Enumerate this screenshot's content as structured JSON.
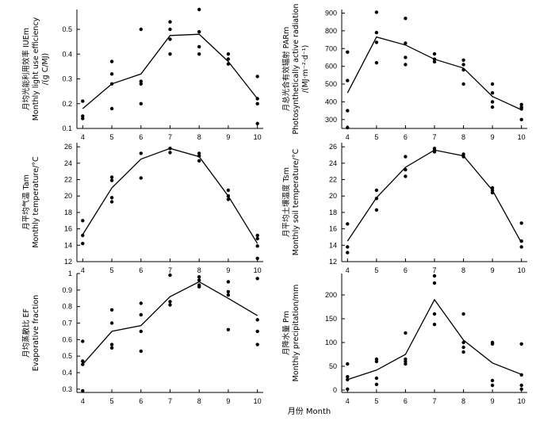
{
  "figure": {
    "x_title": "月份 Month"
  },
  "chart_data": [
    {
      "id": "iue",
      "type": "line",
      "ylabel": [
        "月均光能利用效率 IUEm",
        "Monthly light use efficiency",
        "/(g C/MJ)"
      ],
      "ylim": [
        0.1,
        0.58
      ],
      "yticks": [
        0.1,
        0.2,
        0.3,
        0.4,
        0.5
      ],
      "xlim": [
        3.8,
        10.2
      ],
      "xticks": [
        4,
        5,
        6,
        7,
        8,
        9,
        10
      ],
      "line": [
        [
          4,
          0.18
        ],
        [
          5,
          0.28
        ],
        [
          6,
          0.32
        ],
        [
          7,
          0.475
        ],
        [
          8,
          0.48
        ],
        [
          9,
          0.37
        ],
        [
          10,
          0.22
        ]
      ],
      "points": [
        [
          4,
          0.21
        ],
        [
          4,
          0.15
        ],
        [
          4,
          0.14
        ],
        [
          5,
          0.37
        ],
        [
          5,
          0.32
        ],
        [
          5,
          0.28
        ],
        [
          5,
          0.18
        ],
        [
          6,
          0.5
        ],
        [
          6,
          0.29
        ],
        [
          6,
          0.28
        ],
        [
          6,
          0.2
        ],
        [
          7,
          0.53
        ],
        [
          7,
          0.5
        ],
        [
          7,
          0.46
        ],
        [
          7,
          0.4
        ],
        [
          8,
          0.58
        ],
        [
          8,
          0.49
        ],
        [
          8,
          0.43
        ],
        [
          8,
          0.4
        ],
        [
          9,
          0.4
        ],
        [
          9,
          0.38
        ],
        [
          9,
          0.36
        ],
        [
          10,
          0.31
        ],
        [
          10,
          0.22
        ],
        [
          10,
          0.2
        ],
        [
          10,
          0.12
        ]
      ]
    },
    {
      "id": "par",
      "type": "line",
      "ylabel": [
        "月总光合有效辐射 PARm",
        "Photosynthetically active radiation",
        "/(MJ·m⁻²·d⁻¹)"
      ],
      "ylim": [
        250,
        920
      ],
      "yticks": [
        300,
        400,
        500,
        600,
        700,
        800,
        900
      ],
      "xlim": [
        3.8,
        10.2
      ],
      "xticks": [
        4,
        5,
        6,
        7,
        8,
        9,
        10
      ],
      "line": [
        [
          4,
          450
        ],
        [
          5,
          765
        ],
        [
          6,
          720
        ],
        [
          7,
          640
        ],
        [
          8,
          590
        ],
        [
          9,
          430
        ],
        [
          10,
          355
        ]
      ],
      "points": [
        [
          4,
          680
        ],
        [
          4,
          520
        ],
        [
          4,
          350
        ],
        [
          4,
          255
        ],
        [
          5,
          905
        ],
        [
          5,
          790
        ],
        [
          5,
          735
        ],
        [
          5,
          620
        ],
        [
          6,
          870
        ],
        [
          6,
          730
        ],
        [
          6,
          650
        ],
        [
          6,
          610
        ],
        [
          7,
          670
        ],
        [
          7,
          640
        ],
        [
          7,
          625
        ],
        [
          8,
          635
        ],
        [
          8,
          610
        ],
        [
          8,
          580
        ],
        [
          8,
          500
        ],
        [
          9,
          500
        ],
        [
          9,
          450
        ],
        [
          9,
          400
        ],
        [
          9,
          370
        ],
        [
          10,
          385
        ],
        [
          10,
          370
        ],
        [
          10,
          360
        ],
        [
          10,
          300
        ]
      ]
    },
    {
      "id": "tair",
      "type": "line",
      "ylabel": [
        "月平均气温 Tam",
        "Monthly temperature/°C"
      ],
      "ylim": [
        12,
        26.5
      ],
      "yticks": [
        12,
        14,
        16,
        18,
        20,
        22,
        24,
        26
      ],
      "xlim": [
        3.8,
        10.2
      ],
      "xticks": [
        4,
        5,
        6,
        7,
        8,
        9,
        10
      ],
      "line": [
        [
          4,
          15.3
        ],
        [
          5,
          21.0
        ],
        [
          6,
          24.5
        ],
        [
          7,
          25.8
        ],
        [
          8,
          24.8
        ],
        [
          9,
          20.0
        ],
        [
          10,
          14.2
        ]
      ],
      "points": [
        [
          4,
          17.0
        ],
        [
          4,
          15.2
        ],
        [
          4,
          14.2
        ],
        [
          5,
          22.3
        ],
        [
          5,
          21.9
        ],
        [
          5,
          19.8
        ],
        [
          5,
          19.3
        ],
        [
          6,
          25.2
        ],
        [
          6,
          22.2
        ],
        [
          7,
          25.8
        ],
        [
          7,
          25.3
        ],
        [
          8,
          25.2
        ],
        [
          8,
          24.9
        ],
        [
          8,
          24.3
        ],
        [
          9,
          20.7
        ],
        [
          9,
          20.0
        ],
        [
          9,
          19.6
        ],
        [
          10,
          15.2
        ],
        [
          10,
          14.8
        ],
        [
          10,
          13.9
        ],
        [
          10,
          12.4
        ]
      ]
    },
    {
      "id": "tsoil",
      "type": "line",
      "ylabel": [
        "月平均土壤温度 Tsm",
        "Monthly soil temperature/°C"
      ],
      "ylim": [
        12,
        26.5
      ],
      "yticks": [
        12,
        14,
        16,
        18,
        20,
        22,
        24,
        26
      ],
      "xlim": [
        3.8,
        10.2
      ],
      "xticks": [
        4,
        5,
        6,
        7,
        8,
        9,
        10
      ],
      "line": [
        [
          4,
          14.5
        ],
        [
          5,
          19.8
        ],
        [
          6,
          23.5
        ],
        [
          7,
          25.6
        ],
        [
          8,
          24.9
        ],
        [
          9,
          20.7
        ],
        [
          10,
          14.3
        ]
      ],
      "points": [
        [
          4,
          16.6
        ],
        [
          4,
          13.8
        ],
        [
          4,
          13.1
        ],
        [
          5,
          20.7
        ],
        [
          5,
          19.7
        ],
        [
          5,
          18.3
        ],
        [
          6,
          24.8
        ],
        [
          6,
          23.2
        ],
        [
          6,
          22.4
        ],
        [
          7,
          25.8
        ],
        [
          7,
          25.6
        ],
        [
          7,
          25.4
        ],
        [
          8,
          25.1
        ],
        [
          8,
          24.8
        ],
        [
          9,
          21.0
        ],
        [
          9,
          20.7
        ],
        [
          9,
          20.4
        ],
        [
          10,
          16.7
        ],
        [
          10,
          14.5
        ],
        [
          10,
          13.8
        ]
      ]
    },
    {
      "id": "ef",
      "type": "line",
      "ylabel": [
        "月均蒸散比 EF",
        "Evaporative fraction"
      ],
      "ylim": [
        0.28,
        1.0
      ],
      "yticks": [
        0.3,
        0.4,
        0.5,
        0.6,
        0.7,
        0.8,
        0.9,
        1.0
      ],
      "xlim": [
        3.8,
        10.2
      ],
      "xticks": [
        4,
        5,
        6,
        7,
        8,
        9,
        10
      ],
      "line": [
        [
          4,
          0.45
        ],
        [
          5,
          0.65
        ],
        [
          6,
          0.685
        ],
        [
          7,
          0.86
        ],
        [
          8,
          0.95
        ],
        [
          9,
          0.85
        ],
        [
          10,
          0.745
        ]
      ],
      "points": [
        [
          4,
          0.59
        ],
        [
          4,
          0.47
        ],
        [
          4,
          0.45
        ],
        [
          4,
          0.29
        ],
        [
          5,
          0.78
        ],
        [
          5,
          0.7
        ],
        [
          5,
          0.57
        ],
        [
          5,
          0.55
        ],
        [
          6,
          0.82
        ],
        [
          6,
          0.75
        ],
        [
          6,
          0.65
        ],
        [
          6,
          0.53
        ],
        [
          7,
          0.99
        ],
        [
          7,
          0.83
        ],
        [
          7,
          0.81
        ],
        [
          8,
          0.98
        ],
        [
          8,
          0.96
        ],
        [
          8,
          0.93
        ],
        [
          8,
          0.92
        ],
        [
          9,
          0.95
        ],
        [
          9,
          0.89
        ],
        [
          9,
          0.87
        ],
        [
          9,
          0.66
        ],
        [
          10,
          0.97
        ],
        [
          10,
          0.72
        ],
        [
          10,
          0.65
        ],
        [
          10,
          0.57
        ]
      ]
    },
    {
      "id": "precip",
      "type": "line",
      "ylabel": [
        "月降水量 Pm",
        "Monthly precipitation/mm"
      ],
      "ylim": [
        -5,
        245
      ],
      "yticks": [
        0,
        50,
        100,
        150,
        200
      ],
      "xlim": [
        3.8,
        10.2
      ],
      "xticks": [
        4,
        5,
        6,
        7,
        8,
        9,
        10
      ],
      "line": [
        [
          4,
          22
        ],
        [
          5,
          42
        ],
        [
          6,
          75
        ],
        [
          7,
          190
        ],
        [
          8,
          105
        ],
        [
          9,
          57
        ],
        [
          10,
          33
        ]
      ],
      "points": [
        [
          4,
          55
        ],
        [
          4,
          28
        ],
        [
          4,
          22
        ],
        [
          4,
          2
        ],
        [
          5,
          65
        ],
        [
          5,
          60
        ],
        [
          5,
          25
        ],
        [
          5,
          12
        ],
        [
          6,
          120
        ],
        [
          6,
          65
        ],
        [
          6,
          60
        ],
        [
          6,
          55
        ],
        [
          7,
          240
        ],
        [
          7,
          225
        ],
        [
          7,
          160
        ],
        [
          7,
          138
        ],
        [
          8,
          160
        ],
        [
          8,
          100
        ],
        [
          8,
          90
        ],
        [
          8,
          80
        ],
        [
          9,
          100
        ],
        [
          9,
          97
        ],
        [
          9,
          20
        ],
        [
          9,
          10
        ],
        [
          10,
          97
        ],
        [
          10,
          32
        ],
        [
          10,
          10
        ],
        [
          10,
          2
        ]
      ]
    }
  ]
}
